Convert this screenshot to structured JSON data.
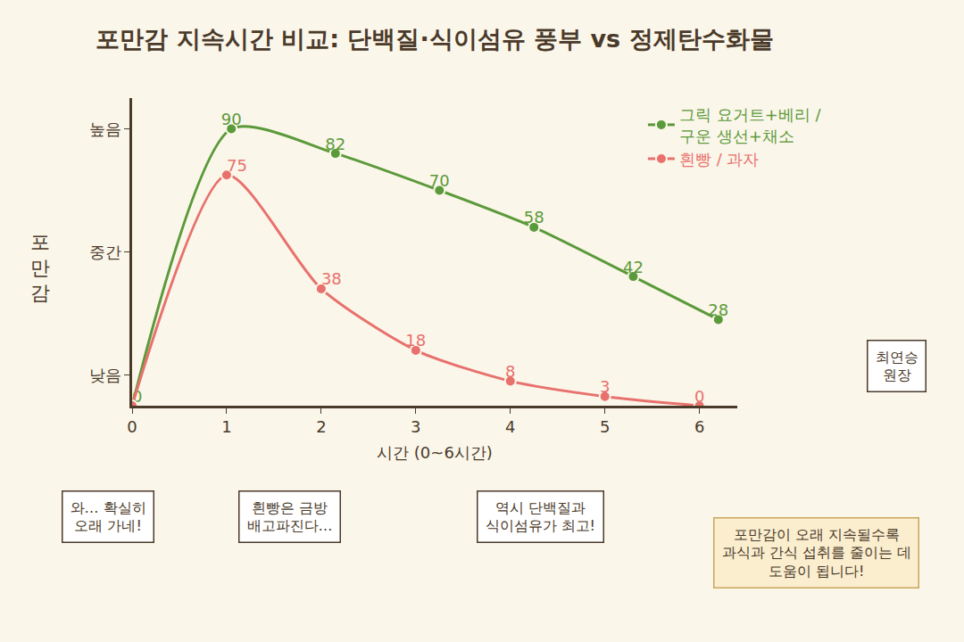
{
  "chart_data": {
    "type": "line",
    "title": "포만감 지속시간 비교: 단백질·식이섬유 풍부 vs 정제탄수화물",
    "x_label": "시간 (0~6시간)",
    "y_label": "포만감",
    "xlim": [
      0,
      6.4
    ],
    "xticks": [
      0,
      1,
      2,
      3,
      4,
      5,
      6
    ],
    "ylim": [
      0,
      100
    ],
    "yticks": [
      {
        "value": 10,
        "label": "낮음"
      },
      {
        "value": 50,
        "label": "중간"
      },
      {
        "value": 90,
        "label": "높음"
      }
    ],
    "grid": false,
    "legend": "top right",
    "data_labels": true,
    "series": [
      {
        "name": "그릭 요거트+베리 / 구운 생선+채소",
        "color": "#5b9a3a",
        "marker": "circle",
        "line_style": "solid",
        "x": [
          0,
          1.05,
          2.15,
          3.25,
          4.25,
          5.3,
          6.2
        ],
        "values": [
          0,
          90,
          82,
          70,
          58,
          42,
          28
        ]
      },
      {
        "name": "흰빵 / 과자",
        "color": "#e8716d",
        "marker": "circle",
        "line_style": "solid",
        "x": [
          0,
          1,
          2,
          3,
          4,
          5,
          6
        ],
        "values": [
          0,
          75,
          38,
          18,
          8,
          3,
          0
        ],
        "value_labels": [
          null,
          "75",
          "38",
          "18",
          "8",
          "3",
          "0"
        ]
      }
    ],
    "annotations": [
      "최연승 원장",
      "와… 확실히 오래 가네!",
      "흰빵은 금방 배고파진다…",
      "역시 단백질과 식이섬유가 최고!",
      "포만감이 오래 지속될수록 과식과 간식 섭취를 줄이는 데 도움이 됩니다!"
    ]
  }
}
